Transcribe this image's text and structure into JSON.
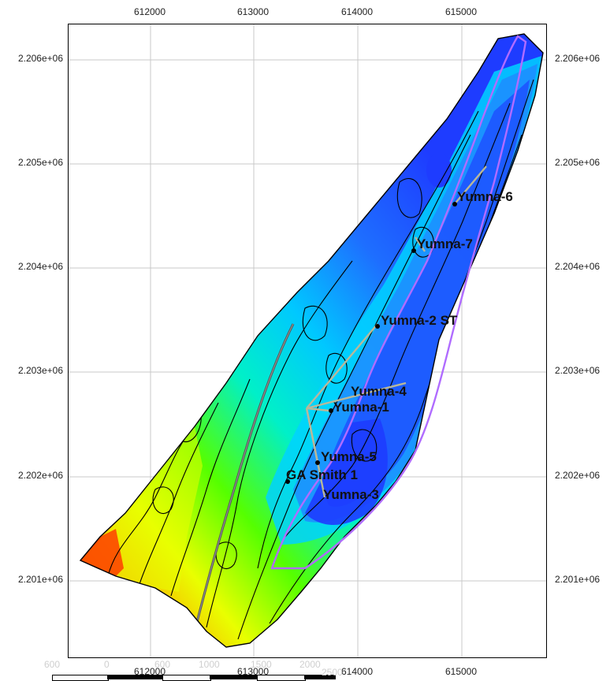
{
  "axes": {
    "x_ticks_top": [
      "612000",
      "613000",
      "614000",
      "615000"
    ],
    "x_ticks_bottom": [
      "612000",
      "613000",
      "614000",
      "615000"
    ],
    "y_ticks_left": [
      "2.206e+06",
      "2.205e+06",
      "2.204e+06",
      "2.203e+06",
      "2.202e+06",
      "2.201e+06"
    ],
    "y_ticks_right": [
      "2.206e+06",
      "2.205e+06",
      "2.204e+06",
      "2.203e+06",
      "2.202e+06",
      "2.201e+06"
    ]
  },
  "wells": [
    {
      "id": "yumna-6",
      "name": "Yumna-6"
    },
    {
      "id": "yumna-7",
      "name": "Yumna-7"
    },
    {
      "id": "yumna-2st",
      "name": "Yumna-2 ST"
    },
    {
      "id": "yumna-4",
      "name": "Yumna-4"
    },
    {
      "id": "yumna-1",
      "name": "Yumna-1"
    },
    {
      "id": "yumna-5",
      "name": "Yumna-5"
    },
    {
      "id": "ga-smith-1",
      "name": "GA Smith 1"
    },
    {
      "id": "yumna-3",
      "name": "Yumna-3"
    }
  ],
  "scale_bar": {
    "labels": [
      "600",
      "0",
      "600",
      "1000",
      "1500",
      "2000",
      "2500"
    ]
  },
  "colors": {
    "frame": "#000000",
    "grid": "#c8c8c8",
    "deep": "#1e3cff",
    "mid": "#00e5ff",
    "shallow": "#9cff00",
    "high": "#ff2a00",
    "highlight_contour": "#b06cff"
  }
}
